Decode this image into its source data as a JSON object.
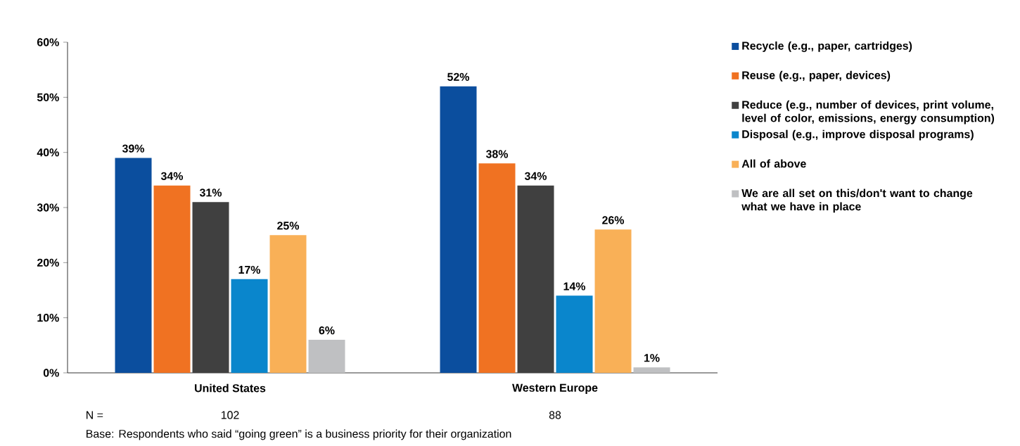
{
  "chart_data": {
    "type": "bar",
    "categories": [
      "United States",
      "Western Europe"
    ],
    "series": [
      {
        "name": "Recycle (e.g., paper, cartridges)",
        "color": "#0b4e9e",
        "values": [
          39,
          52
        ],
        "value_labels": [
          "39%",
          "52%"
        ]
      },
      {
        "name": "Reuse (e.g., paper, devices)",
        "color": "#f07222",
        "values": [
          34,
          38
        ],
        "value_labels": [
          "34%",
          "38%"
        ]
      },
      {
        "name": "Reduce (e.g., number of devices, print volume, level of color, emissions, energy consumption)",
        "color": "#404040",
        "values": [
          31,
          34
        ],
        "value_labels": [
          "31%",
          "34%"
        ]
      },
      {
        "name": "Disposal (e.g., improve disposal programs)",
        "color": "#0a86cc",
        "values": [
          17,
          14
        ],
        "value_labels": [
          "17%",
          "14%"
        ]
      },
      {
        "name": "All of above",
        "color": "#f9b057",
        "values": [
          25,
          26
        ],
        "value_labels": [
          "25%",
          "26%"
        ]
      },
      {
        "name": "We are all set on this/don't want to change what we have in place",
        "color": "#bfc0c2",
        "values": [
          6,
          1
        ],
        "value_labels": [
          "6%",
          "1%"
        ]
      }
    ],
    "ylim": [
      0,
      60
    ],
    "yticks": [
      {
        "value": 0,
        "label": "0%"
      },
      {
        "value": 10,
        "label": "10%"
      },
      {
        "value": 20,
        "label": "20%"
      },
      {
        "value": 30,
        "label": "30%"
      },
      {
        "value": 40,
        "label": "40%"
      },
      {
        "value": 50,
        "label": "50%"
      },
      {
        "value": 60,
        "label": "60%"
      }
    ],
    "legend": "right",
    "annotations": [
      "N =",
      "102",
      "88",
      "Base: Respondents who said “going green” is a business priority for their organization"
    ]
  }
}
